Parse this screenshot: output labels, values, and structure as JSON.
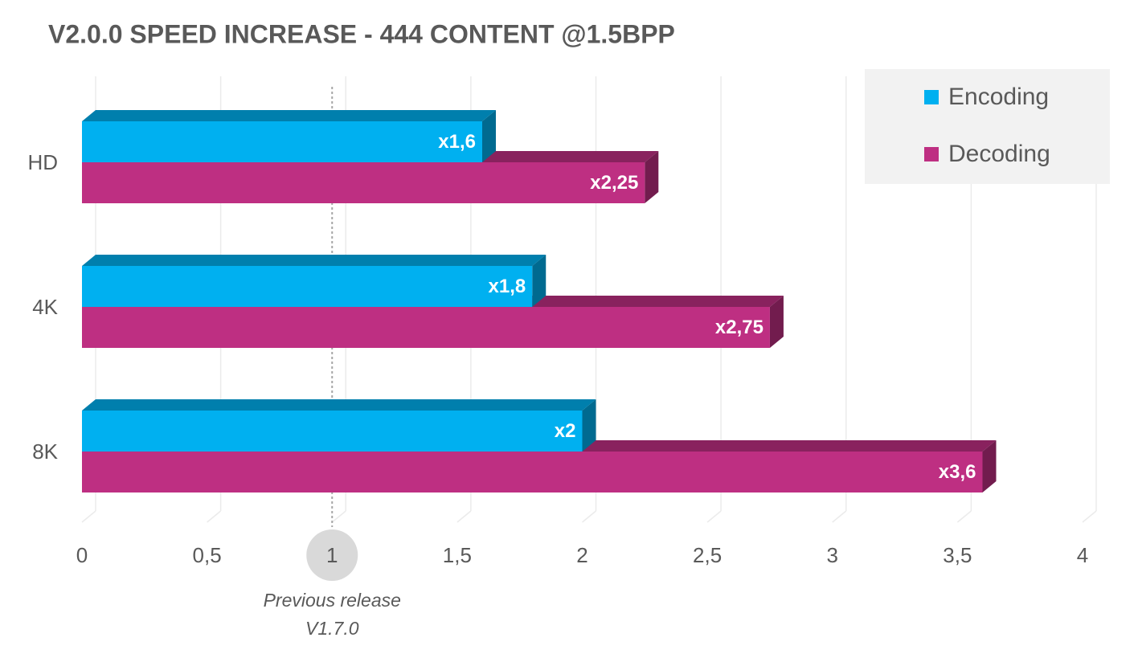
{
  "chart_data": {
    "type": "bar3d",
    "orientation": "horizontal",
    "title": "V2.0.0 SPEED INCREASE - 444 CONTENT @1.5BPP",
    "categories": [
      "HD",
      "4K",
      "8K"
    ],
    "series": [
      {
        "name": "Encoding",
        "color": "#00b0f0",
        "values": [
          1.6,
          1.8,
          2
        ],
        "value_labels": [
          "x1,6",
          "x1,8",
          "x2"
        ]
      },
      {
        "name": "Decoding",
        "color": "#be2f82",
        "values": [
          2.25,
          2.75,
          3.6
        ],
        "value_labels": [
          "x2,25",
          "x2,75",
          "x3,6"
        ]
      }
    ],
    "xlim": [
      0,
      4
    ],
    "xticks": [
      0,
      {
        "value": 0.5,
        "label": "0,5"
      },
      1,
      {
        "value": 1.5,
        "label": "1,5"
      },
      2,
      {
        "value": 2.5,
        "label": "2,5"
      },
      3,
      {
        "value": 3.5,
        "label": "3,5"
      },
      4
    ],
    "grid": true,
    "legend": "top-right",
    "reference_line": {
      "value": 1,
      "label": [
        "Previous release",
        "V1.7.0"
      ]
    }
  }
}
